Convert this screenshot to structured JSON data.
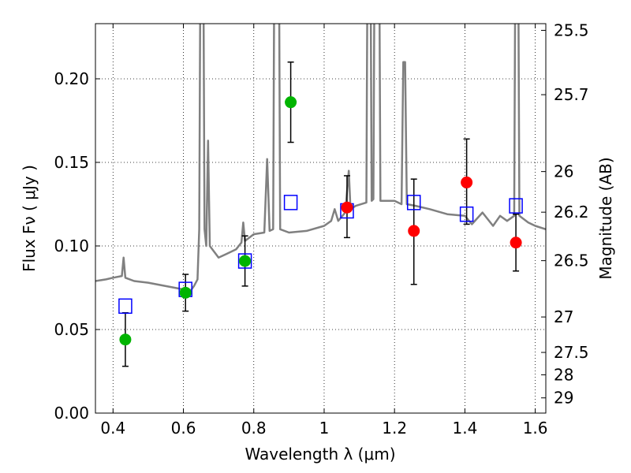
{
  "chart_data": {
    "type": "scatter",
    "xlabel": "Wavelength  λ (μm)",
    "ylabel": "Flux  Fν  ( μJy )",
    "ylabel_right": "Magnitude (AB)",
    "xlim": [
      0.35,
      1.63
    ],
    "ylim": [
      0.0,
      0.233
    ],
    "grid": true,
    "x_ticks": [
      0.4,
      0.6,
      0.8,
      1.0,
      1.2,
      1.4,
      1.6
    ],
    "x_tick_labels": [
      "0.4",
      "0.6",
      "0.8",
      "1",
      "1.2",
      "1.4",
      "1.6"
    ],
    "y_ticks": [
      0.0,
      0.05,
      0.1,
      0.15,
      0.2
    ],
    "y_tick_labels": [
      "0.00",
      "0.05",
      "0.10",
      "0.15",
      "0.20"
    ],
    "right_ticks": [
      {
        "label": "25.5",
        "flux": 0.229
      },
      {
        "label": "25.7",
        "flux": 0.1905
      },
      {
        "label": "26",
        "flux": 0.1445
      },
      {
        "label": "26.2",
        "flux": 0.1202
      },
      {
        "label": "26.5",
        "flux": 0.0912
      },
      {
        "label": "27",
        "flux": 0.0575
      },
      {
        "label": "27.5",
        "flux": 0.0363
      },
      {
        "label": "28",
        "flux": 0.0229
      },
      {
        "label": "29",
        "flux": 0.0091
      }
    ],
    "spectrum": {
      "color": "#808080",
      "points": [
        [
          0.35,
          0.079
        ],
        [
          0.38,
          0.08
        ],
        [
          0.4,
          0.081
        ],
        [
          0.425,
          0.082
        ],
        [
          0.43,
          0.093
        ],
        [
          0.435,
          0.081
        ],
        [
          0.46,
          0.079
        ],
        [
          0.5,
          0.078
        ],
        [
          0.55,
          0.076
        ],
        [
          0.6,
          0.074
        ],
        [
          0.62,
          0.073
        ],
        [
          0.63,
          0.076
        ],
        [
          0.64,
          0.08
        ],
        [
          0.645,
          0.11
        ],
        [
          0.65,
          0.35
        ],
        [
          0.655,
          0.35
        ],
        [
          0.66,
          0.11
        ],
        [
          0.665,
          0.1
        ],
        [
          0.67,
          0.163
        ],
        [
          0.675,
          0.1
        ],
        [
          0.7,
          0.093
        ],
        [
          0.72,
          0.095
        ],
        [
          0.75,
          0.098
        ],
        [
          0.765,
          0.102
        ],
        [
          0.77,
          0.114
        ],
        [
          0.775,
          0.103
        ],
        [
          0.8,
          0.107
        ],
        [
          0.83,
          0.108
        ],
        [
          0.838,
          0.152
        ],
        [
          0.845,
          0.109
        ],
        [
          0.855,
          0.11
        ],
        [
          0.86,
          0.35
        ],
        [
          0.87,
          0.35
        ],
        [
          0.875,
          0.11
        ],
        [
          0.9,
          0.108
        ],
        [
          0.95,
          0.109
        ],
        [
          1.0,
          0.112
        ],
        [
          1.02,
          0.115
        ],
        [
          1.03,
          0.122
        ],
        [
          1.04,
          0.115
        ],
        [
          1.06,
          0.12
        ],
        [
          1.07,
          0.145
        ],
        [
          1.075,
          0.122
        ],
        [
          1.09,
          0.124
        ],
        [
          1.12,
          0.126
        ],
        [
          1.125,
          0.35
        ],
        [
          1.13,
          0.35
        ],
        [
          1.135,
          0.127
        ],
        [
          1.14,
          0.128
        ],
        [
          1.145,
          0.35
        ],
        [
          1.155,
          0.35
        ],
        [
          1.16,
          0.127
        ],
        [
          1.2,
          0.127
        ],
        [
          1.22,
          0.125
        ],
        [
          1.225,
          0.21
        ],
        [
          1.23,
          0.21
        ],
        [
          1.235,
          0.125
        ],
        [
          1.26,
          0.124
        ],
        [
          1.3,
          0.122
        ],
        [
          1.35,
          0.119
        ],
        [
          1.4,
          0.118
        ],
        [
          1.42,
          0.113
        ],
        [
          1.45,
          0.12
        ],
        [
          1.48,
          0.112
        ],
        [
          1.5,
          0.118
        ],
        [
          1.52,
          0.115
        ],
        [
          1.54,
          0.118
        ],
        [
          1.545,
          0.35
        ],
        [
          1.55,
          0.35
        ],
        [
          1.555,
          0.118
        ],
        [
          1.58,
          0.114
        ],
        [
          1.6,
          0.112
        ],
        [
          1.63,
          0.11
        ]
      ]
    },
    "series": [
      {
        "marker": "square-open",
        "color": "#0000ff",
        "points": [
          {
            "x": 0.435,
            "y": 0.064
          },
          {
            "x": 0.606,
            "y": 0.074
          },
          {
            "x": 0.775,
            "y": 0.091
          },
          {
            "x": 0.905,
            "y": 0.126
          },
          {
            "x": 1.065,
            "y": 0.121
          },
          {
            "x": 1.255,
            "y": 0.126
          },
          {
            "x": 1.405,
            "y": 0.119
          },
          {
            "x": 1.545,
            "y": 0.124
          }
        ]
      },
      {
        "marker": "circle",
        "color": "#00b400",
        "points": [
          {
            "x": 0.435,
            "y": 0.044,
            "err": [
              0.028,
              0.06
            ]
          },
          {
            "x": 0.606,
            "y": 0.072,
            "err": [
              0.061,
              0.083
            ]
          },
          {
            "x": 0.775,
            "y": 0.091,
            "err": [
              0.076,
              0.106
            ]
          },
          {
            "x": 0.905,
            "y": 0.186,
            "err": [
              0.162,
              0.21
            ]
          }
        ]
      },
      {
        "marker": "circle",
        "color": "#ff0000",
        "points": [
          {
            "x": 1.065,
            "y": 0.123,
            "err": [
              0.105,
              0.142
            ]
          },
          {
            "x": 1.255,
            "y": 0.109,
            "err": [
              0.077,
              0.14
            ]
          },
          {
            "x": 1.405,
            "y": 0.138,
            "err": [
              0.113,
              0.164
            ]
          },
          {
            "x": 1.545,
            "y": 0.102,
            "err": [
              0.085,
              0.119
            ]
          }
        ]
      }
    ]
  }
}
